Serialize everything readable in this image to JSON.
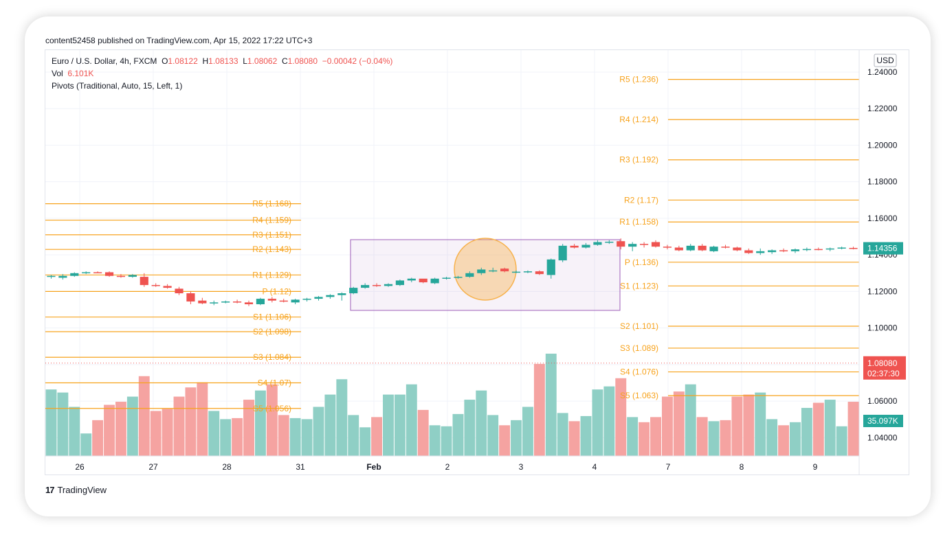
{
  "header": {
    "published": "content52458 published on TradingView.com, Apr 15, 2022 17:22 UTC+3"
  },
  "legend": {
    "symbol": "Euro / U.S. Dollar, 4h, FXCM",
    "o_label": "O",
    "o_val": "1.08122",
    "h_label": "H",
    "h_val": "1.08133",
    "l_label": "L",
    "l_val": "1.08062",
    "c_label": "C",
    "c_val": "1.08080",
    "change": "−0.00042 (−0.04%)",
    "vol_label": "Vol",
    "vol_val": "6.101K",
    "pivots": "Pivots (Traditional, Auto, 15, Left, 1)"
  },
  "price_axis": {
    "currency": "USD",
    "ticks": [
      "1.24000",
      "1.22000",
      "1.20000",
      "1.18000",
      "1.16000",
      "1.14000",
      "1.12000",
      "1.10000",
      "1.08000",
      "1.06000",
      "1.04000"
    ],
    "last_price": "1.14356",
    "cursor_price": "1.08080",
    "countdown": "02:37:30",
    "volume_label": "35.097K"
  },
  "footer": {
    "brand": "TradingView",
    "logo": "17"
  },
  "colors": {
    "up": "#26a69a",
    "down": "#ef5350",
    "vol_up": "#8fcfc5",
    "vol_down": "#f5a3a1",
    "pivot": "#f7a21b",
    "box": "#9c5cb8",
    "highlight": "#f7b24d"
  },
  "chart_data": {
    "type": "candlestick",
    "title": "Euro / U.S. Dollar, 4h, FXCM",
    "x_ticks": [
      "26",
      "27",
      "28",
      "31",
      "Feb",
      "2",
      "3",
      "4",
      "7",
      "8",
      "9"
    ],
    "ylim": [
      1.03,
      1.252
    ],
    "candles": [
      {
        "o": 1.128,
        "h": 1.129,
        "l": 1.127,
        "c": 1.1285
      },
      {
        "o": 1.1275,
        "h": 1.1295,
        "l": 1.1265,
        "c": 1.1285
      },
      {
        "o": 1.1285,
        "h": 1.1305,
        "l": 1.128,
        "c": 1.13
      },
      {
        "o": 1.13,
        "h": 1.131,
        "l": 1.1295,
        "c": 1.1305
      },
      {
        "o": 1.1305,
        "h": 1.131,
        "l": 1.13,
        "c": 1.1303
      },
      {
        "o": 1.1305,
        "h": 1.131,
        "l": 1.128,
        "c": 1.1285
      },
      {
        "o": 1.1285,
        "h": 1.1295,
        "l": 1.1275,
        "c": 1.128
      },
      {
        "o": 1.128,
        "h": 1.1295,
        "l": 1.1275,
        "c": 1.129
      },
      {
        "o": 1.128,
        "h": 1.13,
        "l": 1.1225,
        "c": 1.1235
      },
      {
        "o": 1.1235,
        "h": 1.1245,
        "l": 1.1225,
        "c": 1.123
      },
      {
        "o": 1.123,
        "h": 1.124,
        "l": 1.1215,
        "c": 1.122
      },
      {
        "o": 1.1215,
        "h": 1.1225,
        "l": 1.118,
        "c": 1.119
      },
      {
        "o": 1.119,
        "h": 1.12,
        "l": 1.113,
        "c": 1.1145
      },
      {
        "o": 1.115,
        "h": 1.1165,
        "l": 1.113,
        "c": 1.1135
      },
      {
        "o": 1.1135,
        "h": 1.115,
        "l": 1.1125,
        "c": 1.114
      },
      {
        "o": 1.114,
        "h": 1.115,
        "l": 1.1135,
        "c": 1.1145
      },
      {
        "o": 1.1145,
        "h": 1.1155,
        "l": 1.1135,
        "c": 1.114
      },
      {
        "o": 1.114,
        "h": 1.115,
        "l": 1.112,
        "c": 1.113
      },
      {
        "o": 1.113,
        "h": 1.1165,
        "l": 1.1125,
        "c": 1.116
      },
      {
        "o": 1.116,
        "h": 1.117,
        "l": 1.114,
        "c": 1.115
      },
      {
        "o": 1.115,
        "h": 1.116,
        "l": 1.114,
        "c": 1.1145
      },
      {
        "o": 1.114,
        "h": 1.116,
        "l": 1.113,
        "c": 1.1155
      },
      {
        "o": 1.1155,
        "h": 1.1165,
        "l": 1.1145,
        "c": 1.116
      },
      {
        "o": 1.116,
        "h": 1.1175,
        "l": 1.115,
        "c": 1.117
      },
      {
        "o": 1.117,
        "h": 1.1185,
        "l": 1.116,
        "c": 1.118
      },
      {
        "o": 1.118,
        "h": 1.1195,
        "l": 1.115,
        "c": 1.119
      },
      {
        "o": 1.119,
        "h": 1.1225,
        "l": 1.1185,
        "c": 1.122
      },
      {
        "o": 1.122,
        "h": 1.1245,
        "l": 1.1215,
        "c": 1.1235
      },
      {
        "o": 1.1235,
        "h": 1.1245,
        "l": 1.1225,
        "c": 1.123
      },
      {
        "o": 1.123,
        "h": 1.1245,
        "l": 1.1225,
        "c": 1.124
      },
      {
        "o": 1.1235,
        "h": 1.1265,
        "l": 1.123,
        "c": 1.126
      },
      {
        "o": 1.126,
        "h": 1.1275,
        "l": 1.125,
        "c": 1.127
      },
      {
        "o": 1.127,
        "h": 1.1265,
        "l": 1.1245,
        "c": 1.125
      },
      {
        "o": 1.1245,
        "h": 1.1275,
        "l": 1.124,
        "c": 1.127
      },
      {
        "o": 1.127,
        "h": 1.128,
        "l": 1.1265,
        "c": 1.1275
      },
      {
        "o": 1.1275,
        "h": 1.1285,
        "l": 1.127,
        "c": 1.128
      },
      {
        "o": 1.128,
        "h": 1.131,
        "l": 1.1275,
        "c": 1.13
      },
      {
        "o": 1.13,
        "h": 1.133,
        "l": 1.129,
        "c": 1.132
      },
      {
        "o": 1.131,
        "h": 1.133,
        "l": 1.1305,
        "c": 1.1315
      },
      {
        "o": 1.1325,
        "h": 1.133,
        "l": 1.1305,
        "c": 1.131
      },
      {
        "o": 1.1305,
        "h": 1.1315,
        "l": 1.13,
        "c": 1.1308
      },
      {
        "o": 1.1305,
        "h": 1.1315,
        "l": 1.13,
        "c": 1.131
      },
      {
        "o": 1.131,
        "h": 1.1315,
        "l": 1.129,
        "c": 1.1295
      },
      {
        "o": 1.129,
        "h": 1.138,
        "l": 1.127,
        "c": 1.1375
      },
      {
        "o": 1.137,
        "h": 1.146,
        "l": 1.136,
        "c": 1.145
      },
      {
        "o": 1.145,
        "h": 1.146,
        "l": 1.1435,
        "c": 1.144
      },
      {
        "o": 1.144,
        "h": 1.1465,
        "l": 1.1435,
        "c": 1.1455
      },
      {
        "o": 1.1455,
        "h": 1.148,
        "l": 1.145,
        "c": 1.147
      },
      {
        "o": 1.147,
        "h": 1.148,
        "l": 1.146,
        "c": 1.1472
      },
      {
        "o": 1.1475,
        "h": 1.149,
        "l": 1.143,
        "c": 1.1445
      },
      {
        "o": 1.1445,
        "h": 1.147,
        "l": 1.142,
        "c": 1.146
      },
      {
        "o": 1.146,
        "h": 1.147,
        "l": 1.144,
        "c": 1.1455
      },
      {
        "o": 1.147,
        "h": 1.148,
        "l": 1.144,
        "c": 1.1445
      },
      {
        "o": 1.1445,
        "h": 1.1455,
        "l": 1.143,
        "c": 1.144
      },
      {
        "o": 1.144,
        "h": 1.145,
        "l": 1.142,
        "c": 1.1425
      },
      {
        "o": 1.1425,
        "h": 1.146,
        "l": 1.142,
        "c": 1.145
      },
      {
        "o": 1.145,
        "h": 1.146,
        "l": 1.142,
        "c": 1.1425
      },
      {
        "o": 1.142,
        "h": 1.145,
        "l": 1.1415,
        "c": 1.1445
      },
      {
        "o": 1.1445,
        "h": 1.1455,
        "l": 1.1435,
        "c": 1.144
      },
      {
        "o": 1.144,
        "h": 1.1445,
        "l": 1.142,
        "c": 1.1425
      },
      {
        "o": 1.1425,
        "h": 1.1435,
        "l": 1.1405,
        "c": 1.141
      },
      {
        "o": 1.141,
        "h": 1.1435,
        "l": 1.14,
        "c": 1.142
      },
      {
        "o": 1.1415,
        "h": 1.143,
        "l": 1.1405,
        "c": 1.1425
      },
      {
        "o": 1.1425,
        "h": 1.1435,
        "l": 1.1415,
        "c": 1.142
      },
      {
        "o": 1.142,
        "h": 1.1435,
        "l": 1.141,
        "c": 1.143
      },
      {
        "o": 1.143,
        "h": 1.144,
        "l": 1.142,
        "c": 1.1432
      },
      {
        "o": 1.1432,
        "h": 1.144,
        "l": 1.1425,
        "c": 1.143
      },
      {
        "o": 1.143,
        "h": 1.144,
        "l": 1.142,
        "c": 1.1435
      },
      {
        "o": 1.1435,
        "h": 1.1445,
        "l": 1.143,
        "c": 1.144
      },
      {
        "o": 1.1438,
        "h": 1.1445,
        "l": 1.143,
        "c": 1.1436
      }
    ],
    "volume_up": [
      0.14,
      0.8,
      0.6,
      0.5,
      0.12,
      0.8,
      0.4,
      0.4,
      0.8,
      0.12,
      0.3,
      0.8,
      0.8,
      0.1,
      0.8,
      0.8,
      0.8,
      0.12,
      0.6,
      0.4,
      0.2,
      0.5,
      0.16,
      0.14,
      0.8,
      0.12,
      0.8,
      0.9,
      0.72,
      0.45,
      0.8,
      0.62,
      0.6,
      0.3,
      0.8,
      0.55,
      0.6,
      0.4,
      0.8,
      0.4,
      0.38,
      0.8,
      0.4,
      0.5,
      0.85,
      0.36,
      0.14,
      0.14,
      0.8,
      0.78,
      0.46,
      0.8,
      0.8,
      0.5,
      0.8,
      0.4,
      0.12,
      0.8,
      0.8,
      0.4,
      0.4,
      0.8,
      0.8,
      0.4,
      0.4,
      0.8,
      0.4,
      0.6,
      0.5,
      0.64
    ],
    "volume": [
      0.65,
      0.62,
      0.48,
      0.22,
      0.35,
      0.5,
      0.53,
      0.58,
      0.78,
      0.44,
      0.46,
      0.58,
      0.67,
      0.72,
      0.44,
      0.36,
      0.37,
      0.55,
      0.64,
      0.7,
      0.4,
      0.37,
      0.36,
      0.48,
      0.6,
      0.75,
      0.4,
      0.28,
      0.38,
      0.6,
      0.6,
      0.7,
      0.45,
      0.3,
      0.29,
      0.41,
      0.55,
      0.64,
      0.4,
      0.3,
      0.35,
      0.48,
      0.9,
      1.0,
      0.42,
      0.34,
      0.39,
      0.65,
      0.68,
      0.76,
      0.38,
      0.33,
      0.38,
      0.58,
      0.63,
      0.7,
      0.38,
      0.34,
      0.35,
      0.58,
      0.6,
      0.62,
      0.36,
      0.3,
      0.33,
      0.47,
      0.52,
      0.55,
      0.29,
      0.53
    ],
    "pivots_left": {
      "R5": 1.168,
      "R4": 1.159,
      "R3": 1.151,
      "R2": 1.143,
      "R1": 1.129,
      "P": 1.12,
      "S1": 1.106,
      "S2": 1.098,
      "S3": 1.084,
      "S4": 1.07,
      "S5": 1.056
    },
    "pivots_right": {
      "R5": 1.236,
      "R4": 1.214,
      "R3": 1.192,
      "R2": 1.17,
      "R1": 1.158,
      "P": 1.136,
      "S1": 1.123,
      "S2": 1.101,
      "S3": 1.089,
      "S4": 1.076,
      "S5": 1.063
    }
  }
}
